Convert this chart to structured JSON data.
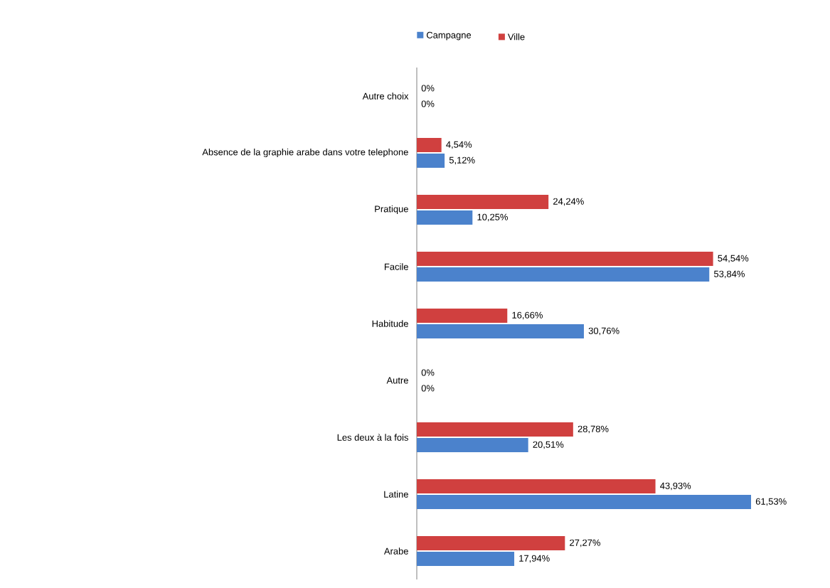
{
  "chart_data": {
    "type": "bar",
    "orientation": "horizontal",
    "categories": [
      "Autre choix",
      "Absence de la graphie arabe dans votre telephone",
      "Pratique",
      "Facile",
      "Habitude",
      "Autre",
      "Les deux à la fois",
      "Latine",
      "Arabe"
    ],
    "series": [
      {
        "name": "Campagne",
        "color": "#4b82cc",
        "values": [
          0,
          5.12,
          10.25,
          53.84,
          30.76,
          0,
          20.51,
          61.53,
          17.94
        ],
        "value_labels": [
          "0%",
          "5,12%",
          "10,25%",
          "53,84%",
          "30,76%",
          "0%",
          "20,51%",
          "61,53%",
          "17,94%"
        ]
      },
      {
        "name": "Ville",
        "color": "#d0403f",
        "values": [
          0,
          4.54,
          24.24,
          54.54,
          16.66,
          0,
          28.78,
          43.93,
          27.27
        ],
        "value_labels": [
          "0%",
          "4,54%",
          "24,24%",
          "54,54%",
          "16,66%",
          "0%",
          "28,78%",
          "43,93%",
          "27,27%"
        ]
      }
    ],
    "legend": "top"
  }
}
